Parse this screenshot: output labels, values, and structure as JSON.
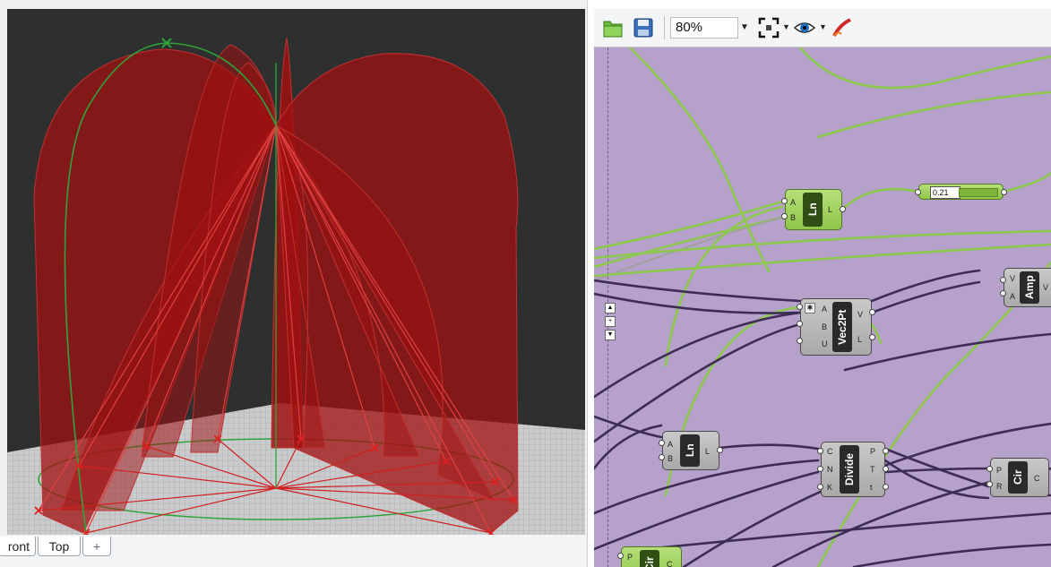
{
  "viewport": {
    "tabs": [
      {
        "label": "ront"
      },
      {
        "label": "Top"
      },
      {
        "label": "+"
      }
    ]
  },
  "toolbar": {
    "zoom_value": "80%",
    "icons": [
      "open-file-icon",
      "save-file-icon",
      "zoom-extents-icon",
      "preview-eye-icon",
      "sketch-pen-icon"
    ]
  },
  "canvas": {
    "slider_value": "0.21",
    "components": [
      {
        "id": "ln-top",
        "name": "Ln",
        "inputs": [
          "A",
          "B"
        ],
        "outputs": [
          "L"
        ]
      },
      {
        "id": "vec2pt",
        "name": "Vec2Pt",
        "inputs": [
          "A",
          "B",
          "U"
        ],
        "outputs": [
          "V",
          "L"
        ]
      },
      {
        "id": "amp",
        "name": "Amp",
        "inputs": [
          "V",
          "A"
        ],
        "outputs": [
          "V"
        ]
      },
      {
        "id": "ln-bottom",
        "name": "Ln",
        "inputs": [
          "A",
          "B"
        ],
        "outputs": [
          "L"
        ]
      },
      {
        "id": "divide",
        "name": "Divide",
        "inputs": [
          "C",
          "N",
          "K"
        ],
        "outputs": [
          "P",
          "T",
          "t"
        ]
      },
      {
        "id": "cir",
        "name": "Cir",
        "inputs": [
          "P",
          "R"
        ],
        "outputs": [
          "C"
        ]
      },
      {
        "id": "cir-partial",
        "name": "Cir",
        "inputs": [
          "P"
        ],
        "outputs": [
          "C"
        ]
      }
    ]
  },
  "colors": {
    "viewport_bg": "#2e3030",
    "surface_red": "#a01010",
    "curve_green": "#2ea43a",
    "canvas_bg": "#b6a1cb",
    "wire_green": "#8cc84b",
    "wire_dark": "#3d2d55"
  }
}
